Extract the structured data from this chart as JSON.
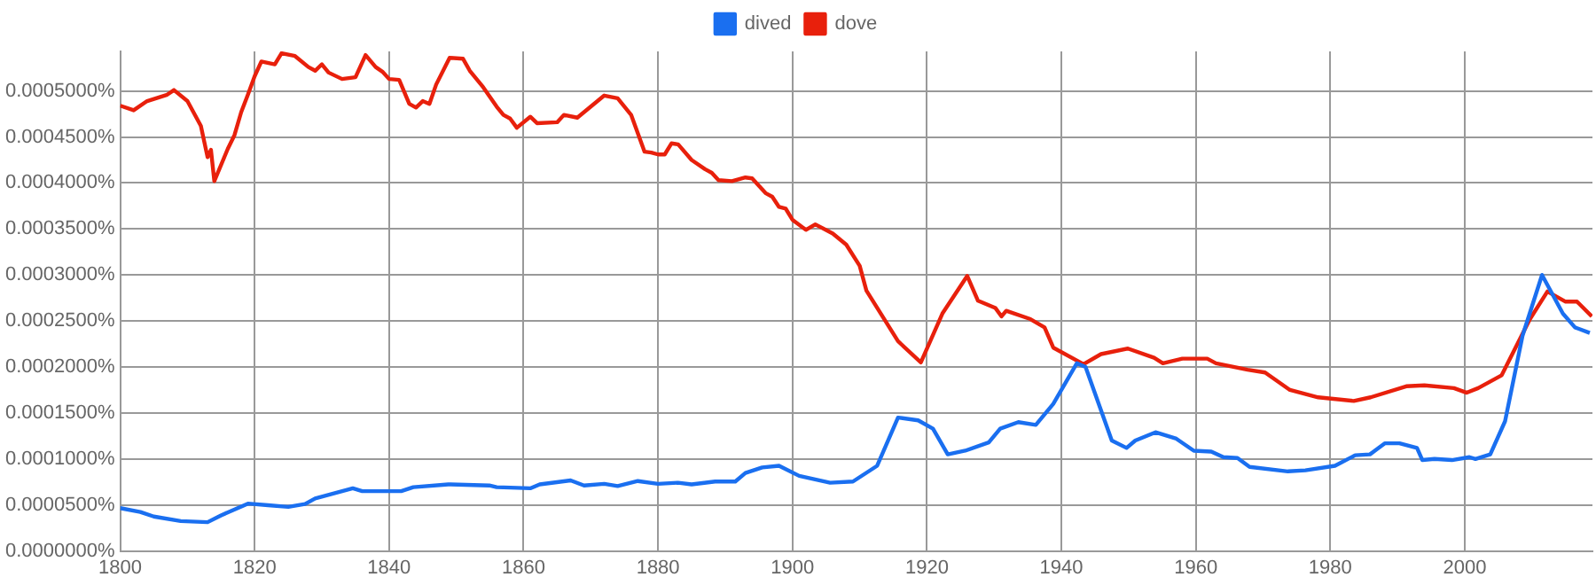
{
  "chart_data": {
    "type": "line",
    "legend": "top",
    "grid": true,
    "xlim": [
      1800,
      2019
    ],
    "xticks": [
      1800,
      1820,
      1840,
      1860,
      1880,
      1900,
      1920,
      1940,
      1960,
      1980,
      2000
    ],
    "ylim": [
      0,
      0.000543
    ],
    "yticks": [
      {
        "value": 0,
        "label": "0.0000000%"
      },
      {
        "value": 5e-05,
        "label": "0.0000500%"
      },
      {
        "value": 0.0001,
        "label": "0.0001000%"
      },
      {
        "value": 0.00015,
        "label": "0.0001500%"
      },
      {
        "value": 0.0002,
        "label": "0.0002000%"
      },
      {
        "value": 0.00025,
        "label": "0.0002500%"
      },
      {
        "value": 0.0003,
        "label": "0.0003000%"
      },
      {
        "value": 0.00035,
        "label": "0.0003500%"
      },
      {
        "value": 0.0004,
        "label": "0.0004000%"
      },
      {
        "value": 0.00045,
        "label": "0.0004500%"
      },
      {
        "value": 0.0005,
        "label": "0.0005000%"
      }
    ],
    "series": [
      {
        "name": "dived",
        "color": "#1a6ff0",
        "x": [
          1800,
          1803,
          1805,
          1809,
          1813,
          1815,
          1819,
          1822,
          1825,
          1827.5,
          1829,
          1834.6,
          1836,
          1841.8,
          1843.6,
          1848.8,
          1854.9,
          1856,
          1861,
          1862.4,
          1867,
          1869,
          1872,
          1874,
          1877,
          1880,
          1883,
          1885,
          1888.5,
          1891.5,
          1893,
          1895.5,
          1898,
          1901,
          1905.6,
          1909,
          1912.6,
          1915.7,
          1918.7,
          1920.9,
          1923.1,
          1925.7,
          1929.2,
          1930.9,
          1933.6,
          1936.2,
          1938.8,
          1942.3,
          1943.6,
          1947.5,
          1949.7,
          1951,
          1954,
          1957.1,
          1959.7,
          1962.3,
          1964.1,
          1966.2,
          1968,
          1973.7,
          1976.3,
          1980.7,
          1983.7,
          1985.9,
          1988.1,
          1990.3,
          1992.9,
          1993.7,
          1995.5,
          1998.1,
          2000.7,
          2001.6,
          2003.8,
          2006,
          2008.6,
          2011.5,
          2014.6,
          2016.4,
          2018.6
        ],
        "values": [
          4.66e-05,
          4.23e-05,
          3.74e-05,
          3.25e-05,
          3.13e-05,
          3.87e-05,
          5.15e-05,
          4.97e-05,
          4.79e-05,
          5.1e-05,
          5.71e-05,
          6.81e-05,
          6.5e-05,
          6.5e-05,
          6.93e-05,
          7.24e-05,
          7.12e-05,
          6.93e-05,
          6.81e-05,
          7.24e-05,
          7.67e-05,
          7.12e-05,
          7.3e-05,
          7.06e-05,
          7.6e-05,
          7.3e-05,
          7.42e-05,
          7.24e-05,
          7.55e-05,
          7.55e-05,
          8.47e-05,
          9.08e-05,
          9.26e-05,
          8.16e-05,
          7.42e-05,
          7.55e-05,
          9.26e-05,
          0.000145,
          0.000142,
          0.000133,
          0.000105,
          0.000109,
          0.000118,
          0.000133,
          0.00014,
          0.000137,
          0.00016,
          0.000204,
          0.0002,
          0.00012,
          0.000112,
          0.00012,
          0.000129,
          0.000122,
          0.000109,
          0.000108,
          0.000102,
          0.000101,
          9.14e-05,
          8.65e-05,
          8.77e-05,
          9.26e-05,
          0.000104,
          0.000105,
          0.000117,
          0.000117,
          0.000112,
          9.88e-05,
          0.0001,
          9.88e-05,
          0.000102,
          0.0001,
          0.000105,
          0.000141,
          0.000234,
          0.0003,
          0.000258,
          0.000243,
          0.000237
        ]
      },
      {
        "name": "dove",
        "color": "#e8200c",
        "x": [
          1800,
          1802,
          1804,
          1807,
          1808,
          1810,
          1812,
          1813,
          1813.5,
          1814,
          1816,
          1817,
          1818,
          1819,
          1820,
          1821,
          1823,
          1824,
          1826,
          1828,
          1829,
          1830,
          1831,
          1833,
          1835,
          1836.5,
          1838,
          1839,
          1840,
          1841.5,
          1843,
          1844,
          1845,
          1846,
          1847,
          1849,
          1851,
          1852,
          1854,
          1856,
          1857,
          1858,
          1859,
          1861,
          1862,
          1865,
          1866,
          1868,
          1870,
          1872,
          1874,
          1876,
          1878,
          1879,
          1880,
          1881,
          1882,
          1883,
          1885,
          1887,
          1888,
          1889,
          1891,
          1893,
          1894,
          1896,
          1897,
          1898,
          1899,
          1900,
          1902,
          1903.4,
          1906,
          1908,
          1910,
          1911,
          1915.7,
          1919.1,
          1922.3,
          1926,
          1927.6,
          1930.2,
          1931.1,
          1931.8,
          1935.4,
          1937.5,
          1938.8,
          1943.3,
          1945.9,
          1949.9,
          1953.8,
          1955.1,
          1958,
          1961.7,
          1963,
          1967.7,
          1970.3,
          1974,
          1978.2,
          1983.5,
          1986,
          1991.3,
          1994,
          1998.4,
          2000.3,
          2002,
          2005.5,
          2009.7,
          2012.3,
          2015,
          2016.7,
          2018.9
        ],
        "values": [
          0.000484,
          0.000479,
          0.000489,
          0.000496,
          0.000501,
          0.000489,
          0.000462,
          0.000428,
          0.000436,
          0.000402,
          0.000437,
          0.000452,
          0.000477,
          0.000496,
          0.000516,
          0.000532,
          0.000529,
          0.000541,
          0.000538,
          0.000526,
          0.000522,
          0.000529,
          0.00052,
          0.000513,
          0.000515,
          0.000539,
          0.000526,
          0.000521,
          0.000513,
          0.000512,
          0.000486,
          0.000482,
          0.000489,
          0.000486,
          0.000507,
          0.000536,
          0.000535,
          0.000522,
          0.000504,
          0.000483,
          0.000474,
          0.00047,
          0.00046,
          0.000472,
          0.000465,
          0.000466,
          0.000474,
          0.000471,
          0.000483,
          0.000495,
          0.000492,
          0.000474,
          0.000434,
          0.000433,
          0.000431,
          0.000431,
          0.000443,
          0.000442,
          0.000425,
          0.000415,
          0.000411,
          0.000403,
          0.000402,
          0.000406,
          0.000405,
          0.000389,
          0.000385,
          0.000374,
          0.000372,
          0.00036,
          0.000349,
          0.000355,
          0.000345,
          0.000333,
          0.00031,
          0.000283,
          0.000228,
          0.000205,
          0.000258,
          0.000299,
          0.000272,
          0.000264,
          0.000255,
          0.000261,
          0.000252,
          0.000243,
          0.000221,
          0.000203,
          0.000214,
          0.00022,
          0.00021,
          0.000204,
          0.000209,
          0.000209,
          0.000204,
          0.000197,
          0.000194,
          0.000175,
          0.000167,
          0.000163,
          0.000167,
          0.000179,
          0.00018,
          0.000177,
          0.000172,
          0.000177,
          0.000191,
          0.000252,
          0.000282,
          0.000271,
          0.000271,
          0.000255
        ]
      }
    ]
  }
}
